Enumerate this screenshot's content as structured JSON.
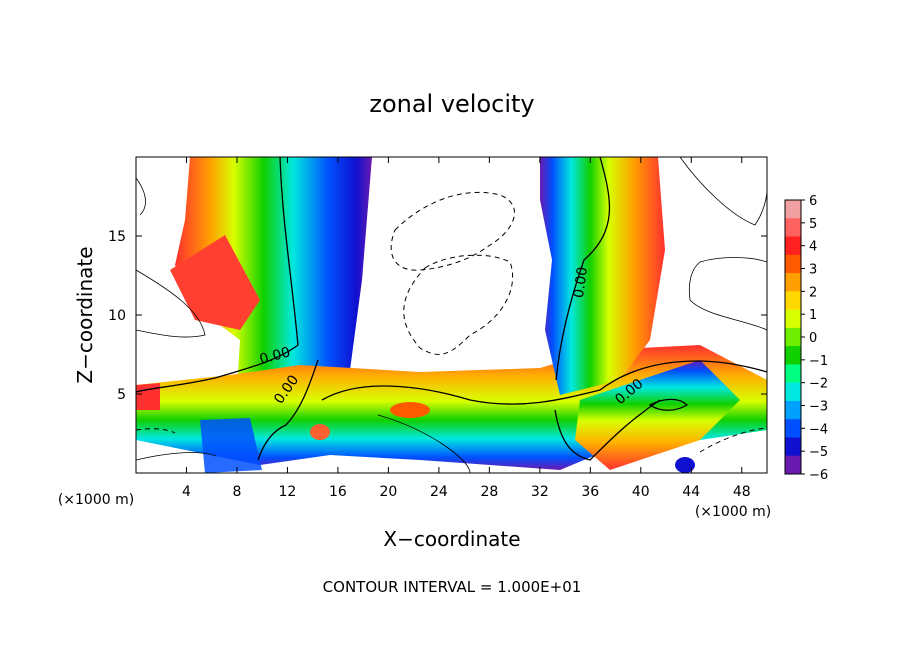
{
  "chart_data": {
    "type": "heatmap",
    "title": "zonal velocity",
    "xlabel": "X−coordinate",
    "ylabel": "Z−coordinate",
    "x_unit_left": "(×1000 m)",
    "x_unit_right": "(×1000 m)",
    "footer": "CONTOUR INTERVAL = 1.000E+01",
    "xlim": [
      0,
      50
    ],
    "ylim": [
      0,
      20
    ],
    "x_ticks": [
      4,
      8,
      12,
      16,
      20,
      24,
      28,
      32,
      36,
      40,
      44,
      48
    ],
    "y_ticks": [
      5,
      10,
      15
    ],
    "contour_labels": [
      "0.00",
      "0.00",
      "0.00",
      "0.00"
    ],
    "colorbar": {
      "min": -6,
      "max": 6,
      "ticks": [
        6,
        5,
        4,
        3,
        2,
        1,
        0,
        -1,
        -2,
        -3,
        -4,
        -5,
        -6
      ],
      "tick_labels": [
        "6",
        "5",
        "4",
        "3",
        "2",
        "1",
        "0",
        "−1",
        "−2",
        "−3",
        "−4",
        "−5",
        "−6"
      ],
      "colors": [
        "#f0a0a0",
        "#ff6060",
        "#ff2020",
        "#ff5a00",
        "#ffa000",
        "#ffd800",
        "#d8ff00",
        "#70ee00",
        "#10d000",
        "#00ff80",
        "#00e8e0",
        "#00a0ff",
        "#0050ff",
        "#1010d0",
        "#6a1ab0"
      ]
    },
    "grid": false
  }
}
